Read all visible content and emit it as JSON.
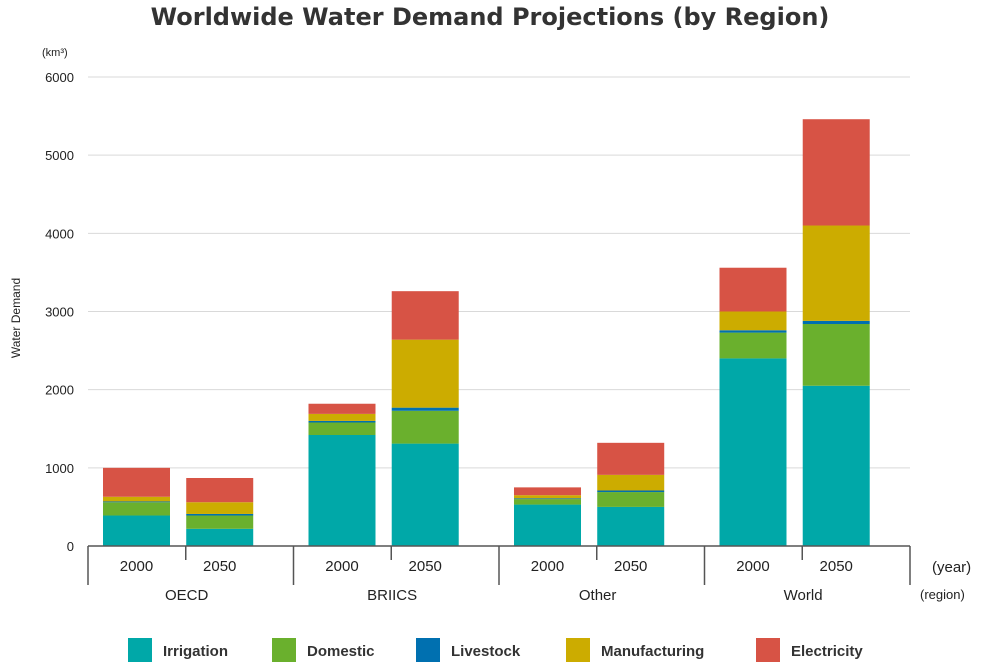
{
  "chart_data": {
    "type": "bar",
    "stacked": true,
    "title": "Worldwide Water Demand Projections (by Region)",
    "ylabel": "Water Demand",
    "yunit": "(km³)",
    "xunit": "(year)",
    "xgroup_unit": "(region)",
    "ylim": [
      0,
      6000
    ],
    "yticks": [
      "0",
      "1000",
      "2000",
      "3000",
      "4000",
      "5000",
      "6000"
    ],
    "grid": true,
    "legend_position": "bottom",
    "groups": [
      {
        "region": "OECD",
        "years": [
          "2000",
          "2050"
        ]
      },
      {
        "region": "BRIICS",
        "years": [
          "2000",
          "2050"
        ]
      },
      {
        "region": "Other",
        "years": [
          "2000",
          "2050"
        ]
      },
      {
        "region": "World",
        "years": [
          "2000",
          "2050"
        ]
      }
    ],
    "series": [
      {
        "name": "Irrigation",
        "color": "#00a8a8",
        "values": [
          390,
          220,
          1420,
          1310,
          530,
          500,
          2400,
          2050
        ]
      },
      {
        "name": "Domestic",
        "color": "#6ab02d",
        "values": [
          170,
          170,
          160,
          420,
          70,
          190,
          330,
          790
        ]
      },
      {
        "name": "Livestock",
        "color": "#0070b0",
        "values": [
          10,
          20,
          20,
          40,
          10,
          20,
          30,
          40
        ]
      },
      {
        "name": "Manufacturing",
        "color": "#ccac00",
        "values": [
          60,
          150,
          90,
          870,
          40,
          200,
          240,
          1220
        ]
      },
      {
        "name": "Electricity",
        "color": "#d75345",
        "values": [
          370,
          310,
          130,
          620,
          100,
          410,
          560,
          1360
        ]
      }
    ]
  }
}
